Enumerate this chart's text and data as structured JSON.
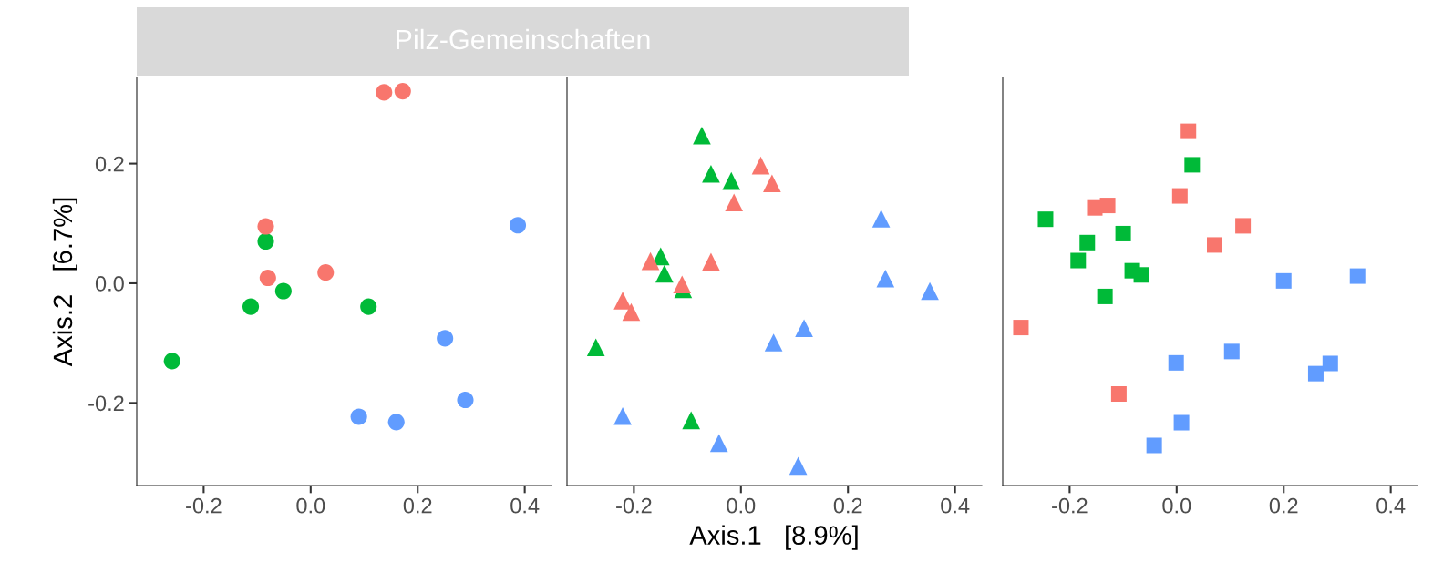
{
  "chart_data": [
    {
      "type": "scatter",
      "title": "Pilz-Gemeinschaften",
      "ylabel": "Axis.2   [6.7%]",
      "marker": "circle",
      "grid": false,
      "legend": false,
      "xlim": [
        -0.325,
        0.45
      ],
      "ylim": [
        -0.338,
        0.344
      ],
      "xticks": [
        {
          "value": -0.2,
          "label": "-0.2"
        },
        {
          "value": 0,
          "label": "0.0"
        },
        {
          "value": 0.2,
          "label": "0.2"
        },
        {
          "value": 0.4,
          "label": "0.4"
        }
      ],
      "yticks": [
        {
          "value": -0.2,
          "label": "-0.2"
        },
        {
          "value": 0,
          "label": "0.0"
        },
        {
          "value": 0.2,
          "label": "0.2"
        }
      ],
      "series": [
        {
          "color": "#f8766d",
          "x": [
            0.137,
            0.172,
            -0.084,
            -0.08,
            0.028
          ],
          "values": [
            0.319,
            0.321,
            0.095,
            0.009,
            0.018
          ]
        },
        {
          "color": "#00ba38",
          "x": [
            -0.084,
            -0.051,
            -0.112,
            0.108,
            -0.259
          ],
          "values": [
            0.07,
            -0.013,
            -0.039,
            -0.039,
            -0.13
          ]
        },
        {
          "color": "#619cff",
          "x": [
            0.387,
            0.251,
            0.289,
            0.09,
            0.16
          ],
          "values": [
            0.097,
            -0.092,
            -0.195,
            -0.223,
            -0.232
          ]
        }
      ]
    },
    {
      "type": "scatter",
      "xlabel": "Axis.1   [8.9%]",
      "marker": "triangle",
      "grid": false,
      "legend": false,
      "tick_labels": "x",
      "xlim": [
        -0.325,
        0.45
      ],
      "ylim": [
        -0.338,
        0.344
      ],
      "xticks": [
        {
          "value": -0.2,
          "label": "-0.2"
        },
        {
          "value": 0,
          "label": "0.0"
        },
        {
          "value": 0.2,
          "label": "0.2"
        },
        {
          "value": 0.4,
          "label": "0.4"
        }
      ],
      "series": [
        {
          "color": "#f8766d",
          "x": [
            0.037,
            0.058,
            -0.013,
            -0.169,
            -0.056,
            -0.11,
            -0.221,
            -0.205
          ],
          "values": [
            0.197,
            0.167,
            0.135,
            0.037,
            0.036,
            -0.002,
            -0.029,
            -0.048
          ]
        },
        {
          "color": "#00ba38",
          "x": [
            -0.073,
            -0.056,
            -0.018,
            -0.15,
            -0.143,
            -0.108,
            -0.271,
            -0.093
          ],
          "values": [
            0.247,
            0.183,
            0.171,
            0.045,
            0.016,
            -0.01,
            -0.107,
            -0.229
          ]
        },
        {
          "color": "#619cff",
          "x": [
            0.262,
            0.27,
            0.353,
            0.118,
            0.061,
            -0.221,
            -0.041,
            0.107
          ],
          "values": [
            0.108,
            0.008,
            -0.013,
            -0.075,
            -0.099,
            -0.222,
            -0.267,
            -0.305
          ]
        }
      ]
    },
    {
      "type": "scatter",
      "marker": "square",
      "grid": false,
      "legend": false,
      "tick_labels": "x",
      "xlim": [
        -0.325,
        0.45
      ],
      "ylim": [
        -0.338,
        0.344
      ],
      "xticks": [
        {
          "value": -0.2,
          "label": "-0.2"
        },
        {
          "value": 0,
          "label": "0.0"
        },
        {
          "value": 0.2,
          "label": "0.2"
        },
        {
          "value": 0.4,
          "label": "0.4"
        }
      ],
      "series": [
        {
          "color": "#f8766d",
          "x": [
            0.022,
            0.006,
            -0.153,
            -0.129,
            0.124,
            0.071,
            -0.291,
            -0.108
          ],
          "values": [
            0.254,
            0.146,
            0.126,
            0.13,
            0.096,
            0.064,
            -0.074,
            -0.185
          ]
        },
        {
          "color": "#00ba38",
          "x": [
            0.029,
            -0.245,
            -0.167,
            -0.184,
            -0.1,
            -0.083,
            -0.066,
            -0.134
          ],
          "values": [
            0.198,
            0.107,
            0.068,
            0.038,
            0.083,
            0.021,
            0.014,
            -0.022
          ]
        },
        {
          "color": "#619cff",
          "x": [
            0.2,
            0.338,
            0.103,
            -0.001,
            0.287,
            0.26,
            0.009,
            -0.042
          ],
          "values": [
            0.004,
            0.012,
            -0.114,
            -0.133,
            -0.134,
            -0.151,
            -0.233,
            -0.271
          ]
        }
      ]
    }
  ]
}
